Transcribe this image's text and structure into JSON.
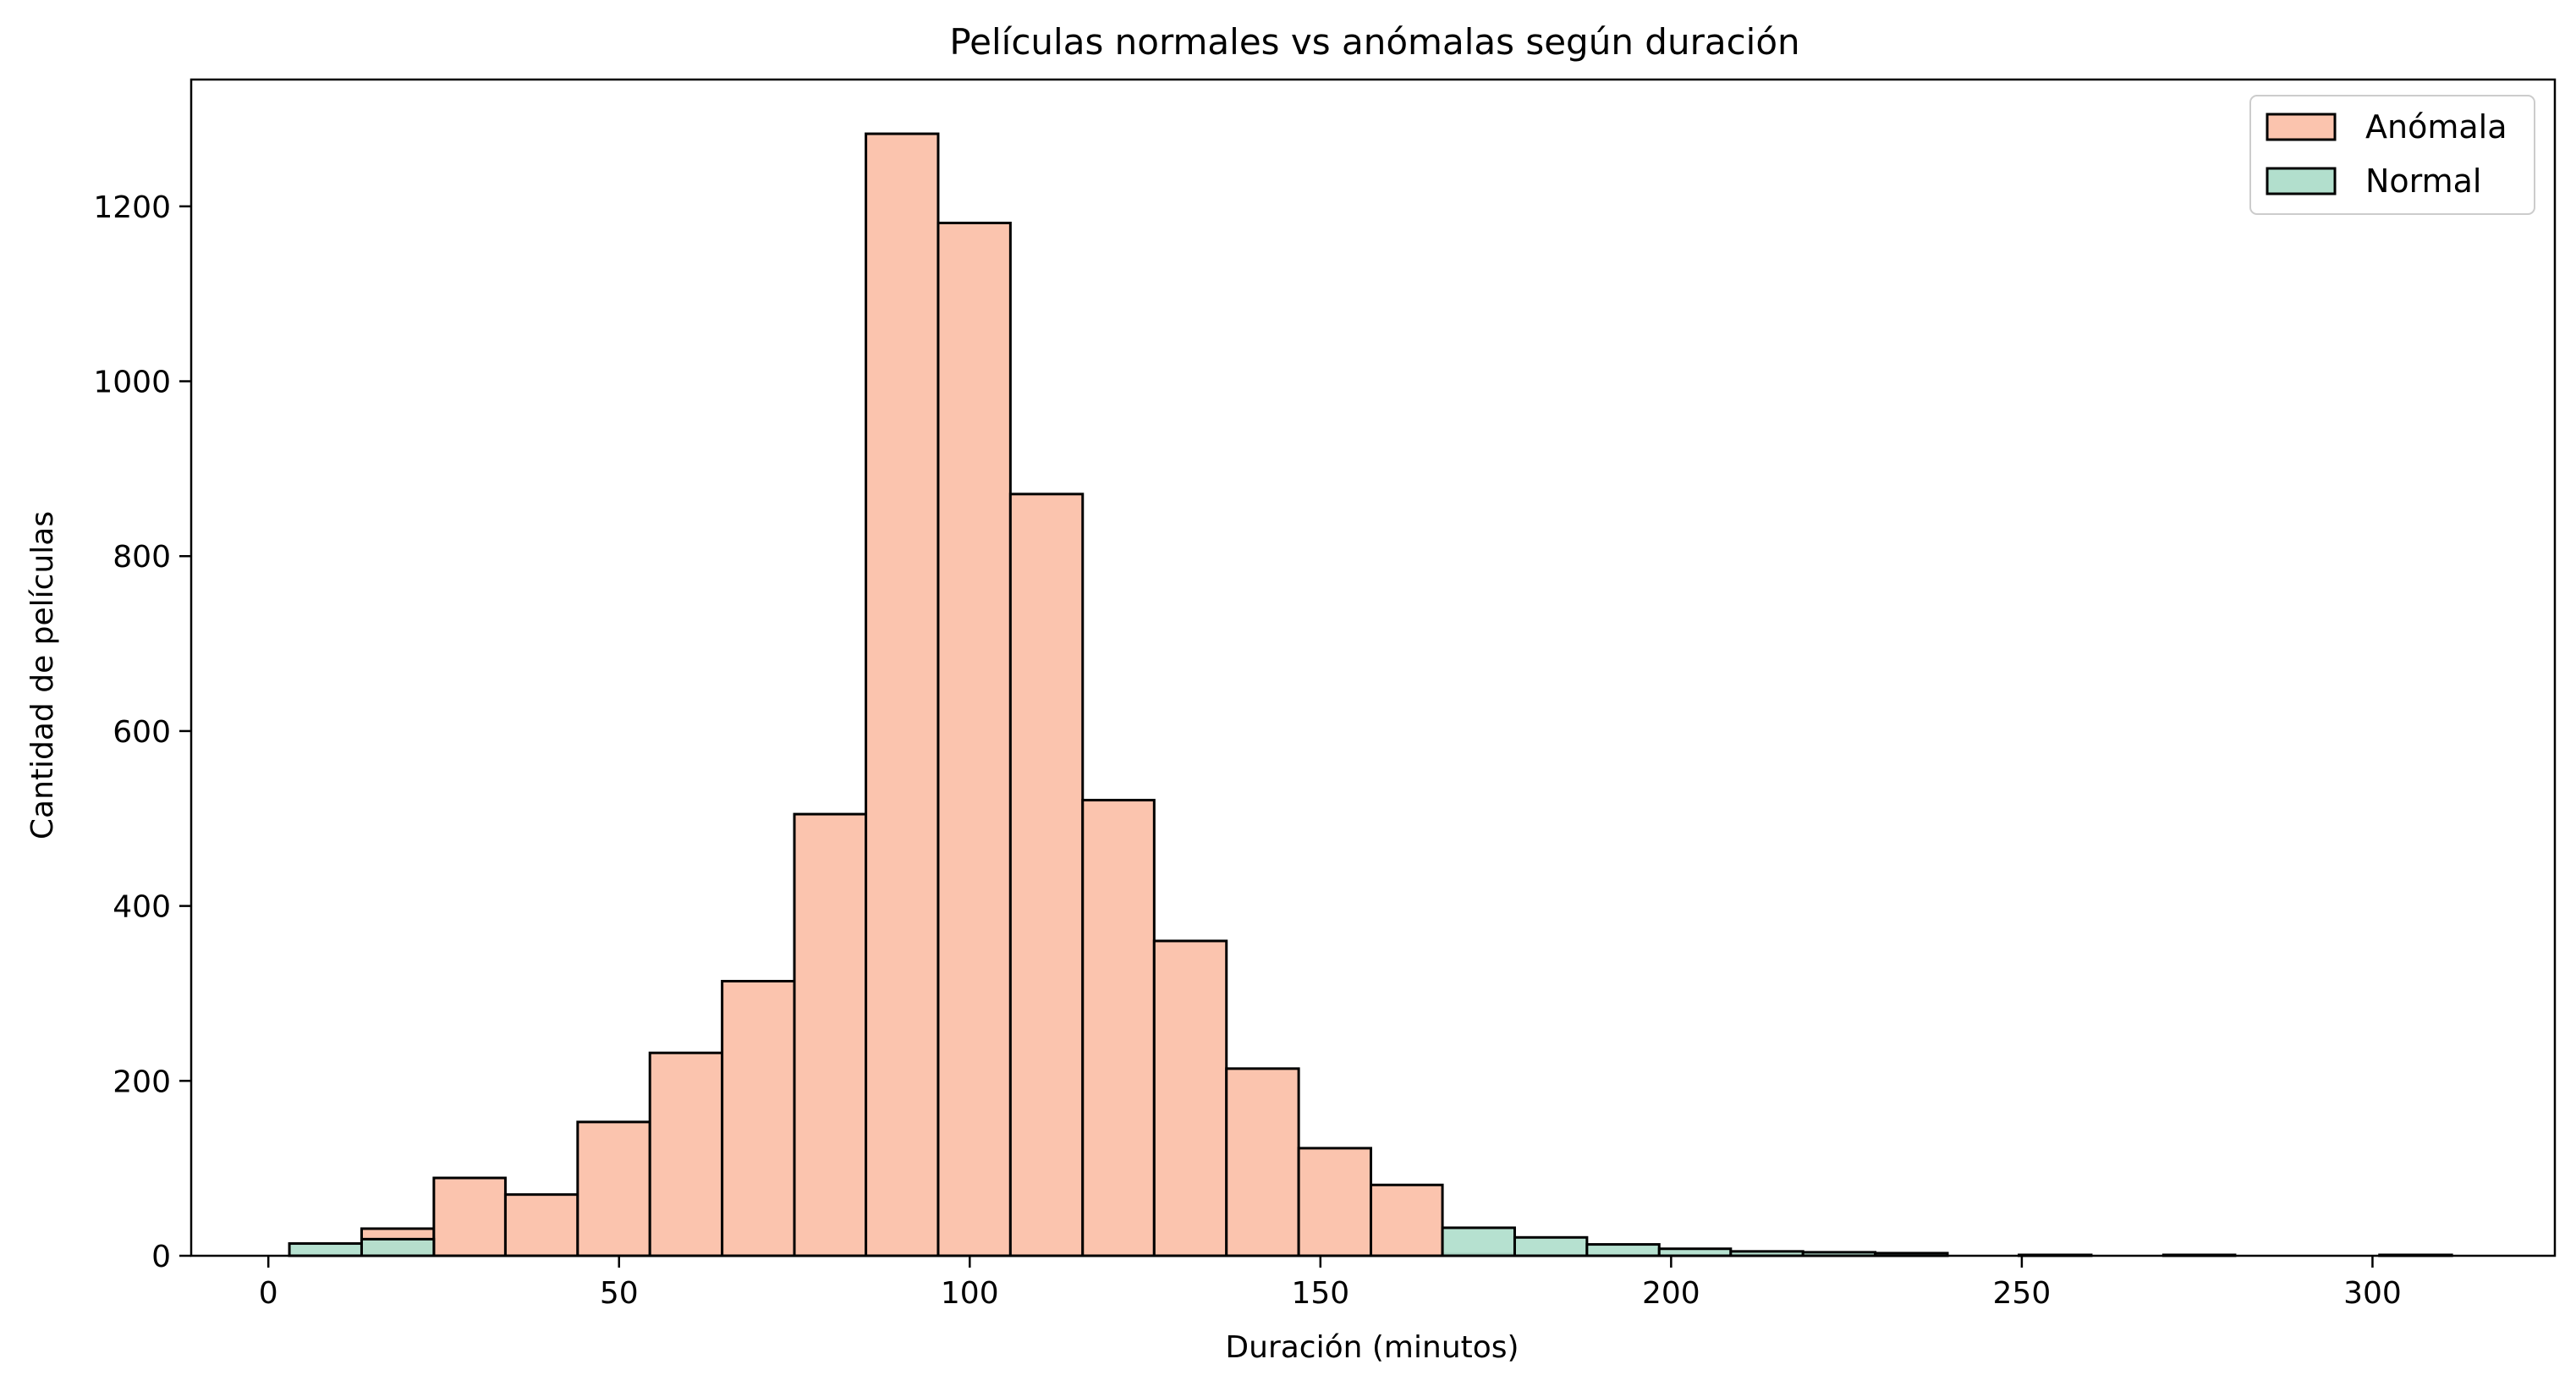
{
  "chart_data": {
    "type": "bar",
    "title": "Películas normales vs anómalas según duración",
    "xlabel": "Duración (minutos)",
    "ylabel": "Cantidad de películas",
    "xlim": [
      -11,
      326
    ],
    "ylim": [
      0,
      1345
    ],
    "xticks": [
      0,
      50,
      100,
      150,
      200,
      250,
      300
    ],
    "yticks": [
      0,
      200,
      400,
      600,
      800,
      1000,
      1200
    ],
    "grid": false,
    "legend_position": "top-right",
    "series": [
      {
        "name": "Anómala",
        "color": "#fbc4ae",
        "bins": [
          {
            "x0": 13.3,
            "x1": 23.6,
            "value": 31
          },
          {
            "x0": 23.6,
            "x1": 33.8,
            "value": 89
          },
          {
            "x0": 33.8,
            "x1": 44.1,
            "value": 70
          },
          {
            "x0": 44.1,
            "x1": 54.4,
            "value": 153
          },
          {
            "x0": 54.4,
            "x1": 64.7,
            "value": 232
          },
          {
            "x0": 64.7,
            "x1": 75.0,
            "value": 314
          },
          {
            "x0": 75.0,
            "x1": 85.2,
            "value": 505
          },
          {
            "x0": 85.2,
            "x1": 95.5,
            "value": 1283
          },
          {
            "x0": 95.5,
            "x1": 105.8,
            "value": 1181
          },
          {
            "x0": 105.8,
            "x1": 116.1,
            "value": 871
          },
          {
            "x0": 116.1,
            "x1": 126.3,
            "value": 521
          },
          {
            "x0": 126.3,
            "x1": 136.6,
            "value": 360
          },
          {
            "x0": 136.6,
            "x1": 146.9,
            "value": 214
          },
          {
            "x0": 146.9,
            "x1": 157.2,
            "value": 123
          },
          {
            "x0": 157.2,
            "x1": 167.4,
            "value": 81
          },
          {
            "x0": 167.4,
            "x1": 177.7,
            "value": 2
          }
        ]
      },
      {
        "name": "Normal",
        "color": "#b2dfcd",
        "bins": [
          {
            "x0": 3.0,
            "x1": 13.3,
            "value": 14
          },
          {
            "x0": 13.3,
            "x1": 23.6,
            "value": 19
          },
          {
            "x0": 167.4,
            "x1": 177.7,
            "value": 32
          },
          {
            "x0": 177.7,
            "x1": 188.0,
            "value": 21
          },
          {
            "x0": 188.0,
            "x1": 198.3,
            "value": 13
          },
          {
            "x0": 198.3,
            "x1": 208.5,
            "value": 8
          },
          {
            "x0": 208.5,
            "x1": 218.8,
            "value": 5
          },
          {
            "x0": 218.8,
            "x1": 229.1,
            "value": 4
          },
          {
            "x0": 229.1,
            "x1": 239.4,
            "value": 3
          },
          {
            "x0": 249.6,
            "x1": 259.9,
            "value": 1
          },
          {
            "x0": 270.2,
            "x1": 280.4,
            "value": 1
          },
          {
            "x0": 301.0,
            "x1": 311.3,
            "value": 1
          }
        ]
      }
    ]
  }
}
